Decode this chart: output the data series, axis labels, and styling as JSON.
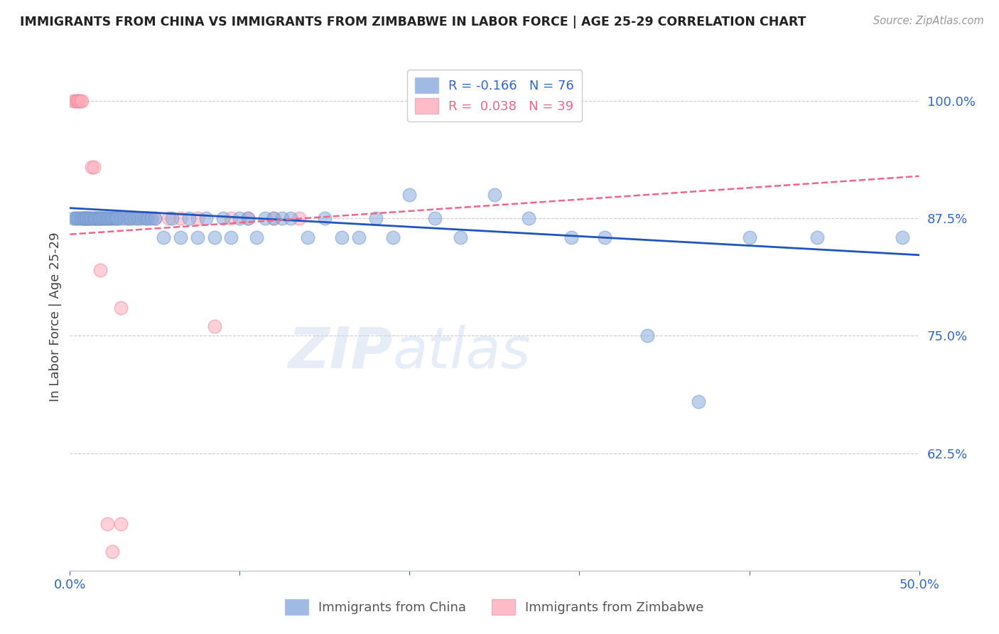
{
  "title": "IMMIGRANTS FROM CHINA VS IMMIGRANTS FROM ZIMBABWE IN LABOR FORCE | AGE 25-29 CORRELATION CHART",
  "source": "Source: ZipAtlas.com",
  "ylabel": "In Labor Force | Age 25-29",
  "xlim": [
    0.0,
    0.5
  ],
  "ylim": [
    0.5,
    1.04
  ],
  "yticks": [
    0.625,
    0.75,
    0.875,
    1.0
  ],
  "ytick_labels": [
    "62.5%",
    "75.0%",
    "87.5%",
    "100.0%"
  ],
  "xticks": [
    0.0,
    0.1,
    0.2,
    0.3,
    0.4,
    0.5
  ],
  "xtick_labels": [
    "0.0%",
    "",
    "",
    "",
    "",
    "50.0%"
  ],
  "china_color": "#88aadd",
  "china_edge_color": "#7799cc",
  "zimbabwe_color": "#ffaabb",
  "zimbabwe_edge_color": "#ee8899",
  "china_line_color": "#2255bb",
  "zimbabwe_line_color": "#ee6688",
  "legend_china_label": "R = -0.166   N = 76",
  "legend_zimbabwe_label": "R =  0.038   N = 39",
  "legend_bottom_china": "Immigrants from China",
  "legend_bottom_zimbabwe": "Immigrants from Zimbabwe",
  "watermark": "ZIPatlas",
  "china_x": [
    0.002,
    0.003,
    0.004,
    0.005,
    0.006,
    0.007,
    0.008,
    0.008,
    0.009,
    0.01,
    0.01,
    0.011,
    0.012,
    0.013,
    0.014,
    0.015,
    0.015,
    0.016,
    0.017,
    0.018,
    0.018,
    0.019,
    0.02,
    0.021,
    0.022,
    0.023,
    0.024,
    0.025,
    0.026,
    0.027,
    0.028,
    0.03,
    0.032,
    0.034,
    0.036,
    0.038,
    0.04,
    0.042,
    0.044,
    0.046,
    0.048,
    0.05,
    0.055,
    0.06,
    0.065,
    0.07,
    0.075,
    0.08,
    0.085,
    0.09,
    0.095,
    0.1,
    0.105,
    0.11,
    0.115,
    0.12,
    0.125,
    0.13,
    0.14,
    0.15,
    0.16,
    0.17,
    0.18,
    0.19,
    0.2,
    0.215,
    0.23,
    0.25,
    0.27,
    0.295,
    0.315,
    0.34,
    0.37,
    0.4,
    0.44,
    0.49
  ],
  "china_y": [
    0.875,
    0.875,
    0.875,
    0.875,
    0.875,
    0.875,
    0.875,
    0.875,
    0.875,
    0.875,
    0.875,
    0.875,
    0.875,
    0.875,
    0.875,
    0.875,
    0.875,
    0.875,
    0.875,
    0.875,
    0.875,
    0.875,
    0.875,
    0.875,
    0.875,
    0.875,
    0.875,
    0.875,
    0.875,
    0.875,
    0.875,
    0.875,
    0.875,
    0.875,
    0.875,
    0.875,
    0.875,
    0.875,
    0.875,
    0.875,
    0.875,
    0.875,
    0.855,
    0.875,
    0.855,
    0.875,
    0.855,
    0.875,
    0.855,
    0.875,
    0.855,
    0.875,
    0.875,
    0.855,
    0.875,
    0.875,
    0.875,
    0.875,
    0.855,
    0.875,
    0.855,
    0.855,
    0.875,
    0.855,
    0.9,
    0.875,
    0.855,
    0.9,
    0.875,
    0.855,
    0.855,
    0.75,
    0.68,
    0.855,
    0.855,
    0.855
  ],
  "zimbabwe_x": [
    0.002,
    0.003,
    0.004,
    0.005,
    0.005,
    0.006,
    0.007,
    0.008,
    0.008,
    0.009,
    0.01,
    0.011,
    0.012,
    0.013,
    0.014,
    0.015,
    0.016,
    0.018,
    0.02,
    0.022,
    0.025,
    0.028,
    0.03,
    0.035,
    0.04,
    0.045,
    0.05,
    0.058,
    0.065,
    0.075,
    0.085,
    0.095,
    0.105,
    0.12,
    0.135,
    0.018,
    0.022,
    0.025,
    0.03
  ],
  "zimbabwe_y": [
    1.0,
    1.0,
    1.0,
    1.0,
    1.0,
    1.0,
    1.0,
    0.875,
    0.875,
    0.875,
    0.875,
    0.875,
    0.875,
    0.93,
    0.93,
    0.875,
    0.875,
    0.875,
    0.875,
    0.875,
    0.875,
    0.875,
    0.78,
    0.875,
    0.875,
    0.875,
    0.875,
    0.875,
    0.875,
    0.875,
    0.76,
    0.875,
    0.875,
    0.875,
    0.875,
    0.82,
    0.55,
    0.52,
    0.55
  ],
  "china_trend_x": [
    0.0,
    0.5
  ],
  "china_trend_y": [
    0.886,
    0.836
  ],
  "zimbabwe_trend_x": [
    0.0,
    0.5
  ],
  "zimbabwe_trend_y": [
    0.858,
    0.92
  ]
}
